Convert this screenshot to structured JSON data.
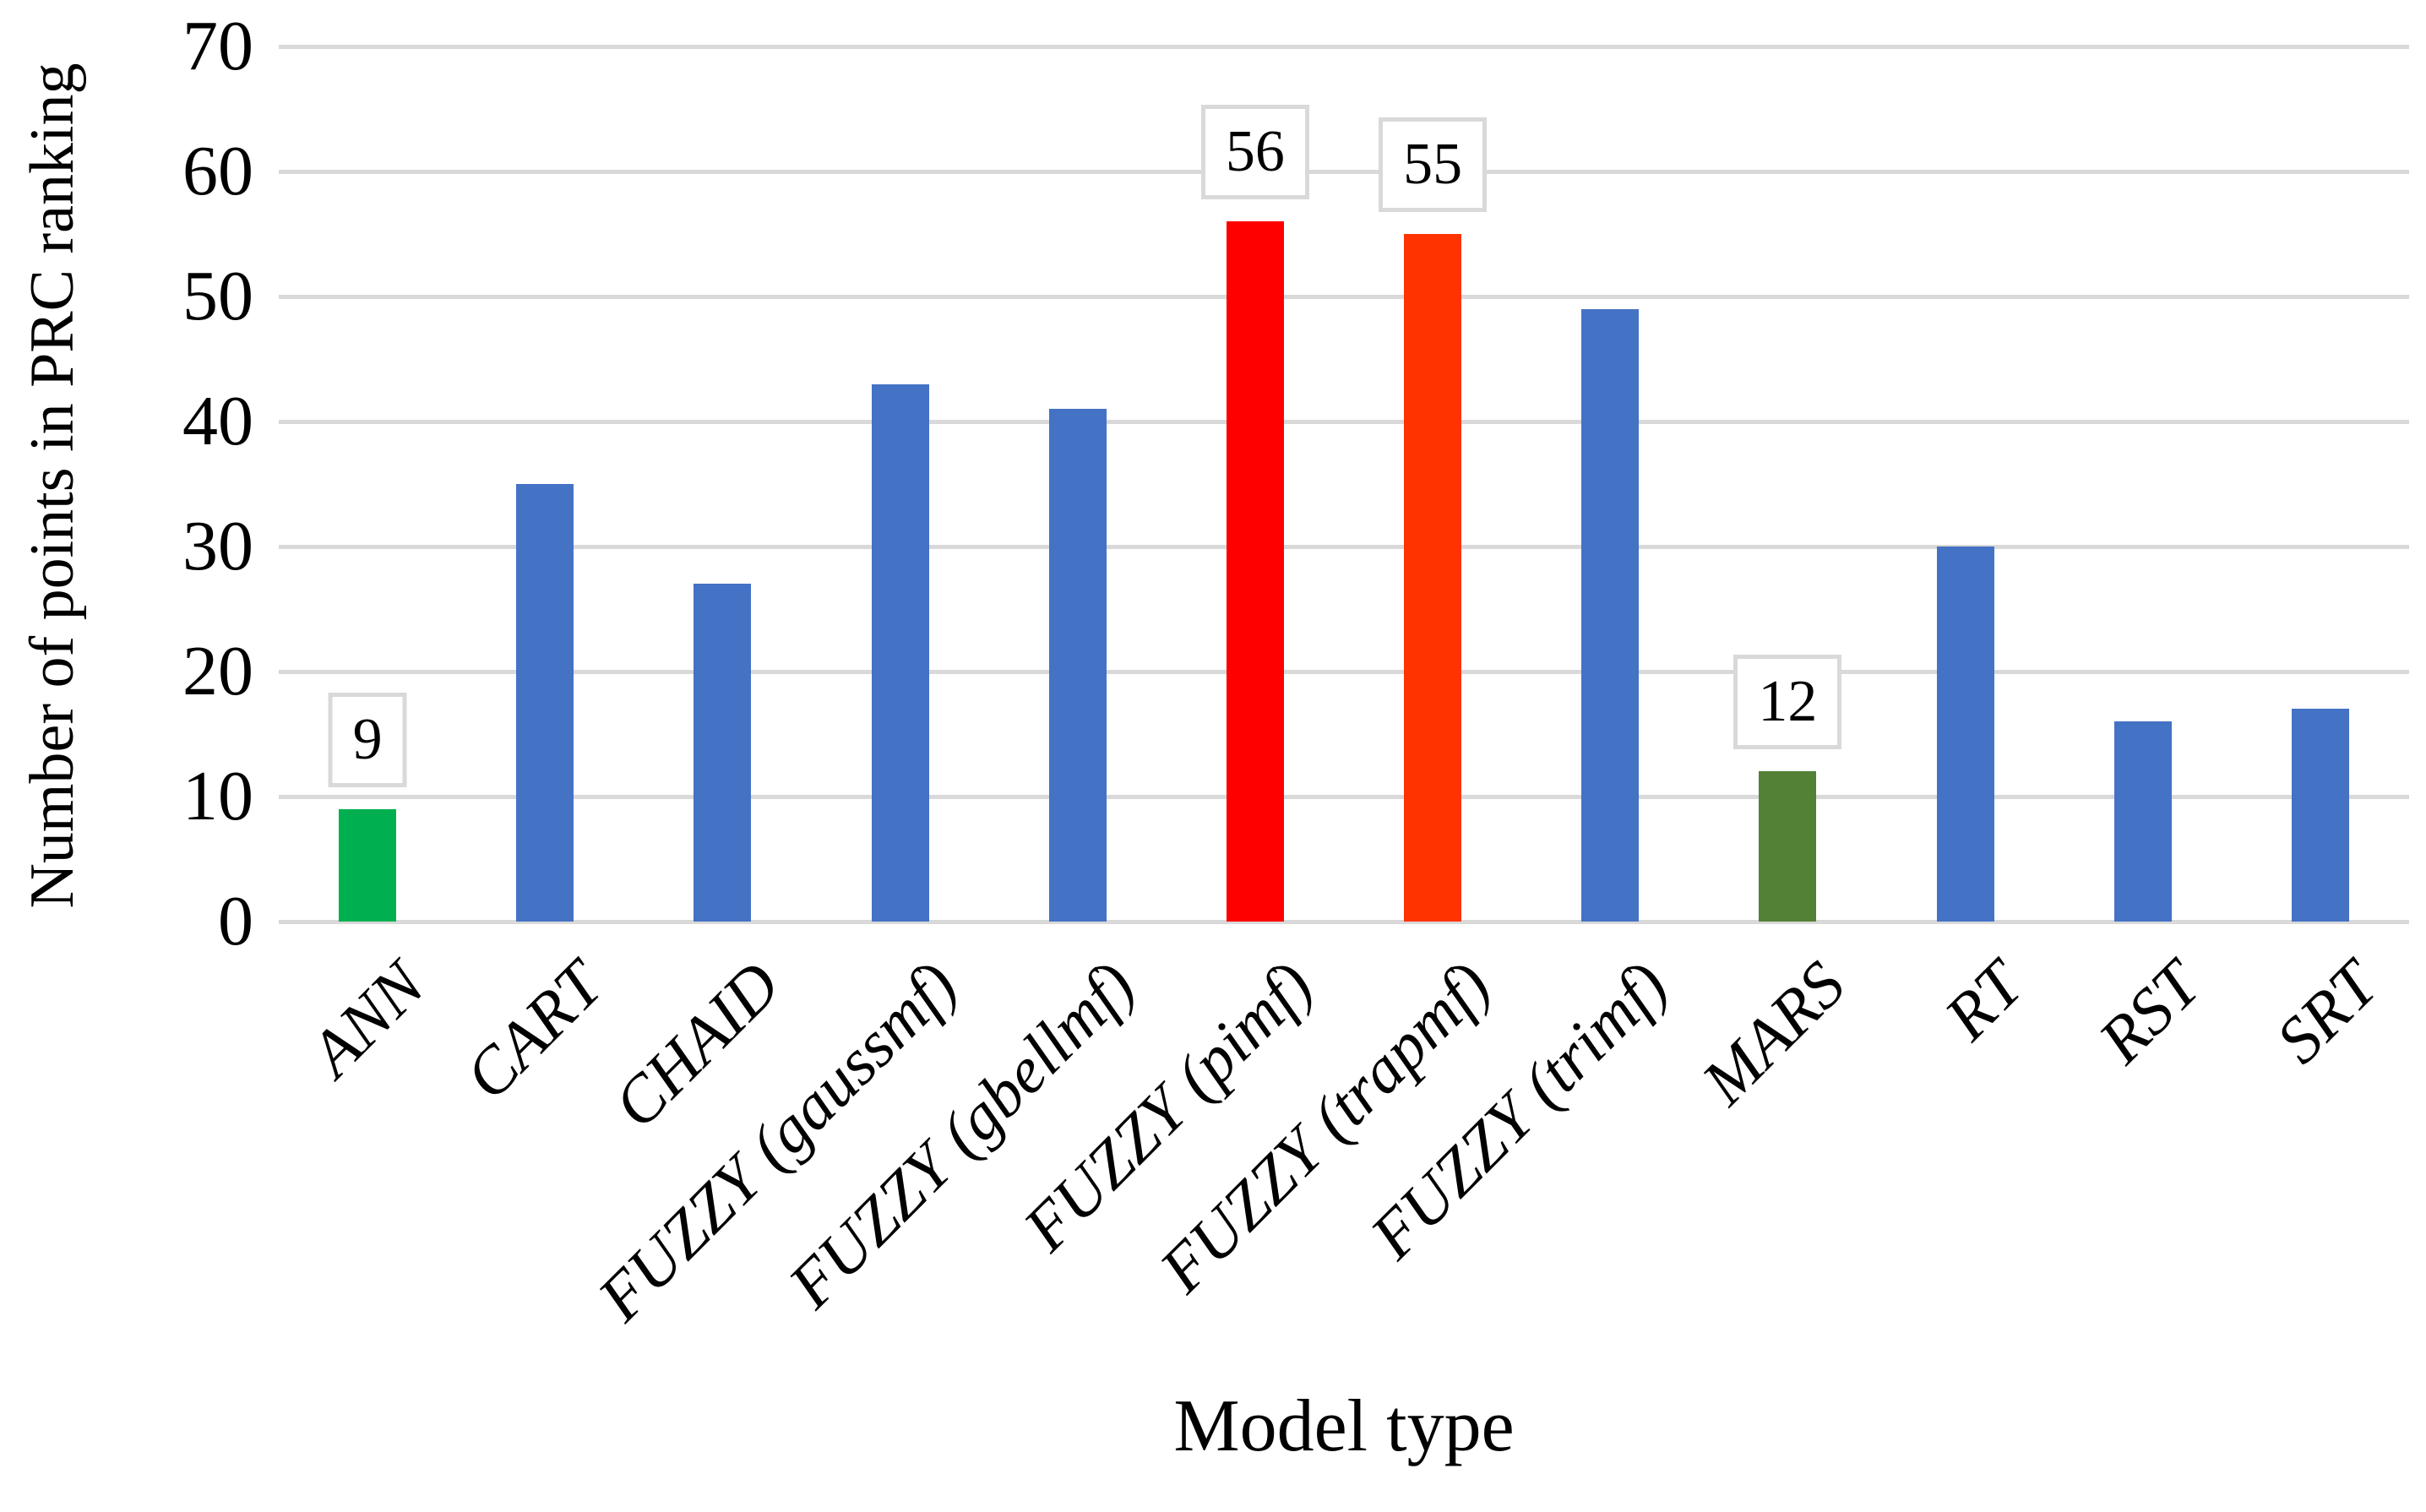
{
  "colors": {
    "bar_default": "#4472C4",
    "bar_ann_green": "#00B050",
    "bar_mars_green": "#538135",
    "bar_pimf_red": "#FF0000",
    "bar_trapmf_orange_red": "#FF3300",
    "gridline": "#D9D9D9",
    "data_label_box_border": "#D9D9D9",
    "data_label_box_bg": "#FFFFFF",
    "text": "#000000"
  },
  "chart_data": {
    "type": "bar",
    "title": "",
    "xlabel": "Model type",
    "ylabel": "Number of points in PRC ranking",
    "ylim": [
      0,
      70
    ],
    "yticks": [
      0,
      10,
      20,
      30,
      40,
      50,
      60,
      70
    ],
    "grid": true,
    "legend": "none",
    "categories": [
      "ANN",
      "CART",
      "CHAID",
      "FUZZY (gaussmf)",
      "FUZZY (gbellmf)",
      "FUZZY (pimf)",
      "FUZZY (trapmf)",
      "FUZZY (trimf)",
      "MARS",
      "RT",
      "RST",
      "SRT"
    ],
    "values": [
      9,
      35,
      27,
      43,
      41,
      56,
      55,
      49,
      12,
      30,
      16,
      17
    ],
    "bar_colors": [
      "#00B050",
      "#4472C4",
      "#4472C4",
      "#4472C4",
      "#4472C4",
      "#FF0000",
      "#FF3300",
      "#4472C4",
      "#538135",
      "#4472C4",
      "#4472C4",
      "#4472C4"
    ],
    "data_labels": [
      {
        "index": 0,
        "text": "9"
      },
      {
        "index": 5,
        "text": "56"
      },
      {
        "index": 6,
        "text": "55"
      },
      {
        "index": 8,
        "text": "12"
      }
    ]
  }
}
